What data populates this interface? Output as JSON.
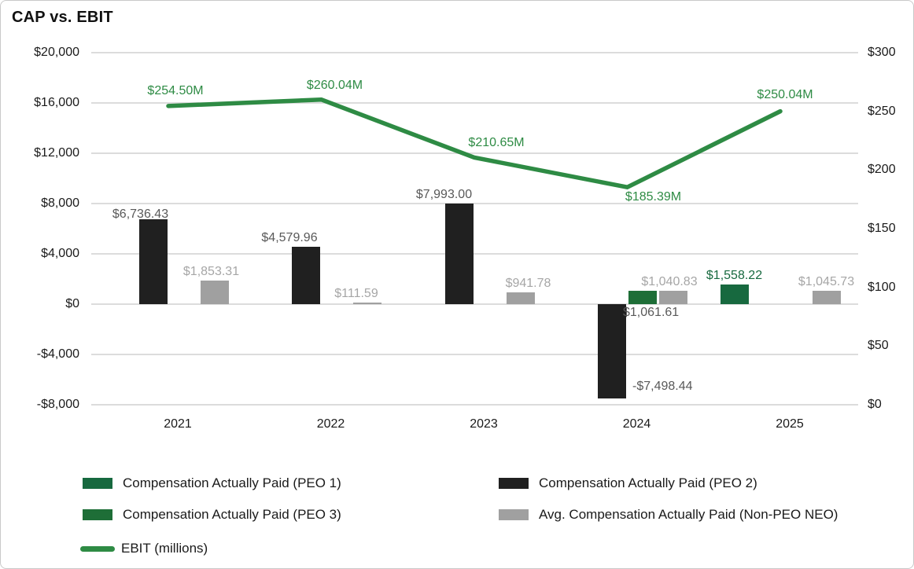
{
  "colors": {
    "peo1_bar": "#17693f",
    "peo2_bar": "#202020",
    "peo3_bar": "#1e6e37",
    "neo_bar": "#a0a0a0",
    "ebit_line": "#2e8b44",
    "grid_line": "#dcdcdc",
    "axis_text": "#1a1a1a",
    "bar_label_dark": "#595959",
    "bar_label_gray": "#a6a6a6",
    "peo1_label": "#17693f",
    "ebit_label": "#2e8b44",
    "frame_border": "#c9c9c9",
    "title_text": "#111111"
  },
  "legend": [
    {
      "label": "Compensation Actually Paid (PEO 1)",
      "swatch": "bar",
      "color_key": "peo1_bar"
    },
    {
      "label": "Compensation Actually Paid (PEO 2)",
      "swatch": "bar",
      "color_key": "peo2_bar"
    },
    {
      "label": "Compensation Actually Paid (PEO 3)",
      "swatch": "bar",
      "color_key": "peo3_bar"
    },
    {
      "label": "Avg. Compensation Actually Paid (Non-PEO NEO)",
      "swatch": "bar",
      "color_key": "neo_bar"
    },
    {
      "label": "EBIT (millions)",
      "swatch": "line",
      "color_key": "ebit_line"
    }
  ],
  "chart_data": {
    "type": "combo-bar-line",
    "title": "CAP vs. EBIT",
    "categories": [
      "2021",
      "2022",
      "2023",
      "2024",
      "2025"
    ],
    "bar_series": [
      {
        "name": "Compensation Actually Paid (PEO 1)",
        "axis": "left",
        "values": [
          null,
          null,
          null,
          null,
          1558.22
        ],
        "data_labels": [
          null,
          null,
          null,
          null,
          "$1,558.22"
        ]
      },
      {
        "name": "Compensation Actually Paid (PEO 2)",
        "axis": "left",
        "values": [
          6736.43,
          4579.96,
          7993.0,
          -7498.44,
          null
        ],
        "data_labels": [
          "$6,736.43",
          "$4,579.96",
          "$7,993.00",
          "-$7,498.44",
          null
        ]
      },
      {
        "name": "Compensation Actually Paid (PEO 3)",
        "axis": "left",
        "values": [
          null,
          null,
          null,
          1061.61,
          null
        ],
        "data_labels": [
          null,
          null,
          null,
          "$1,061.61",
          null
        ]
      },
      {
        "name": "Avg. Compensation Actually Paid (Non-PEO NEO)",
        "axis": "left",
        "values": [
          1853.31,
          111.59,
          941.78,
          1040.83,
          1045.73
        ],
        "data_labels": [
          "$1,853.31",
          "$111.59",
          "$941.78",
          "$1,040.83",
          "$1,045.73"
        ]
      }
    ],
    "line_series": [
      {
        "name": "EBIT (millions)",
        "axis": "right",
        "values": [
          254.5,
          260.04,
          210.65,
          185.39,
          250.04
        ],
        "data_labels": [
          "$254.50M",
          "$260.04M",
          "$210.65M",
          "$185.39M",
          "$250.04M"
        ]
      }
    ],
    "left_axis": {
      "min": -8000,
      "max": 20000,
      "tick_step": 4000,
      "tick_labels": [
        "$20,000",
        "$16,000",
        "$12,000",
        "$8,000",
        "$4,000",
        "$0",
        "-$4,000",
        "-$8,000"
      ]
    },
    "right_axis": {
      "min": 0,
      "max": 300,
      "tick_step": 50,
      "tick_labels": [
        "$300",
        "$250",
        "$200",
        "$150",
        "$100",
        "$50",
        "$0"
      ]
    },
    "grid": true,
    "legend_position": "bottom"
  }
}
